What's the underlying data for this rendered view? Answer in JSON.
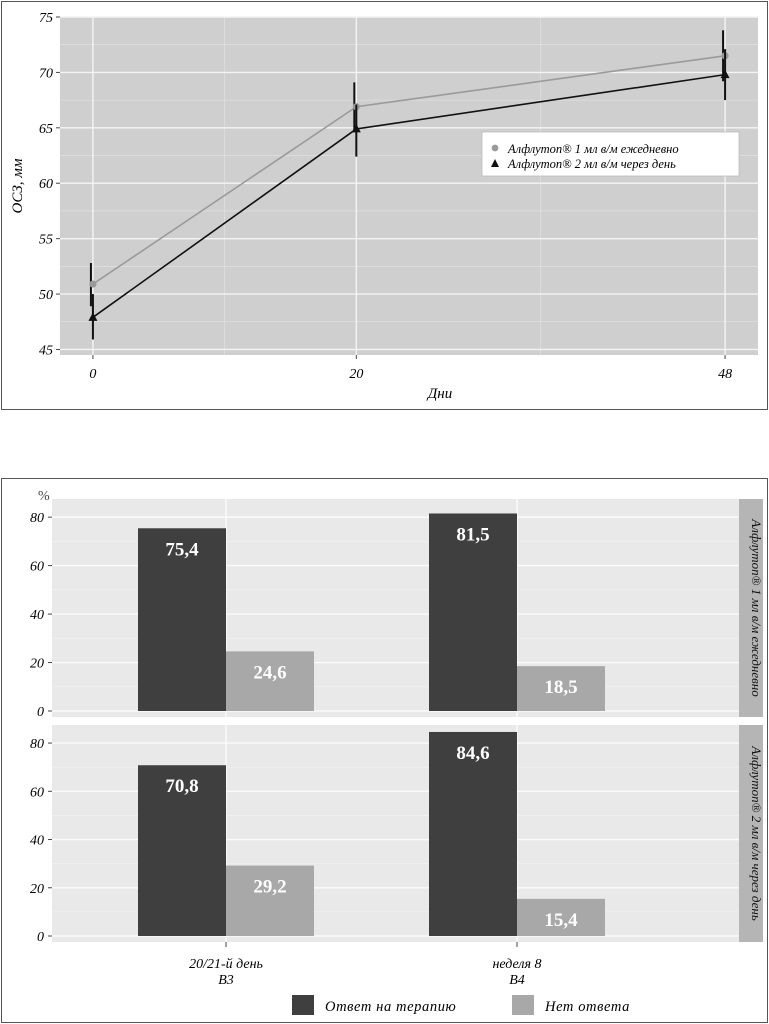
{
  "chart_data": [
    {
      "type": "line",
      "title": "",
      "xlabel": "Дни",
      "ylabel": "ОСЗ, мм",
      "x": [
        0,
        20,
        48
      ],
      "x_ticks": [
        "0",
        "20",
        "48"
      ],
      "xlim": [
        -2.5,
        50.5
      ],
      "ylim": [
        44.5,
        75
      ],
      "y_ticks": [
        "45",
        "50",
        "55",
        "60",
        "65",
        "70",
        "75"
      ],
      "grid": true,
      "legend_position": "right",
      "series": [
        {
          "name": "Алфлутоп® 1 мл в/м ежедневно",
          "marker": "circle",
          "color": "#9a9a9a",
          "values": [
            50.9,
            66.9,
            71.5
          ],
          "err_low": [
            48.9,
            64.6,
            69.2
          ],
          "err_high": [
            52.8,
            69.1,
            73.8
          ]
        },
        {
          "name": "Алфлутоп® 2 мл в/м через день",
          "marker": "triangle",
          "color": "#111111",
          "values": [
            47.9,
            64.9,
            69.8
          ],
          "err_low": [
            45.9,
            62.4,
            67.5
          ],
          "err_high": [
            50.0,
            67.1,
            72.1
          ]
        }
      ]
    },
    {
      "type": "bar",
      "title": "",
      "ylabel": "%",
      "categories": [
        "20/21-й день В3",
        "неделя 8 В4"
      ],
      "category_lines": [
        [
          "20/21-й день",
          "В3"
        ],
        [
          "неделя 8",
          "В4"
        ]
      ],
      "ylim": [
        0,
        85
      ],
      "y_ticks": [
        "0",
        "20",
        "40",
        "60",
        "80"
      ],
      "grid": true,
      "legend_position": "bottom",
      "series_names": [
        "Ответ на терапию",
        "Нет ответа"
      ],
      "series_colors": [
        "#3f3f3f",
        "#a8a8a8"
      ],
      "panels": [
        {
          "strip": "Алфлутоп® 1 мл в/м ежедневно",
          "series": [
            {
              "name": "Ответ на терапию",
              "values": [
                75.4,
                81.5
              ],
              "labels": [
                "75,4",
                "81,5"
              ]
            },
            {
              "name": "Нет ответа",
              "values": [
                24.6,
                18.5
              ],
              "labels": [
                "24,6",
                "18,5"
              ]
            }
          ]
        },
        {
          "strip": "Алфлутоп® 2 мл в/м через день",
          "series": [
            {
              "name": "Ответ на терапию",
              "values": [
                70.8,
                84.6
              ],
              "labels": [
                "70,8",
                "84,6"
              ]
            },
            {
              "name": "Нет ответа",
              "values": [
                29.2,
                15.4
              ],
              "labels": [
                "29,2",
                "15,4"
              ]
            }
          ]
        }
      ]
    }
  ]
}
